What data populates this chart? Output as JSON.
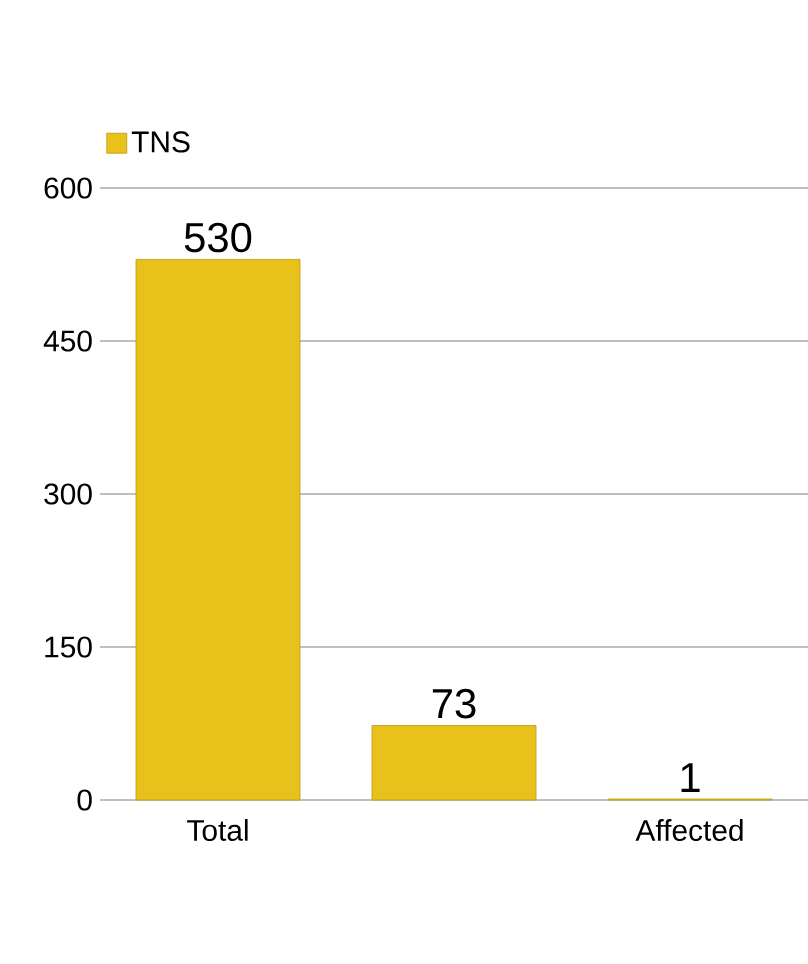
{
  "chart_data": {
    "type": "bar",
    "categories": [
      "Total",
      null,
      "Affected"
    ],
    "series": [
      {
        "name": "TNS",
        "color": "#e8c11a",
        "values": [
          530,
          73,
          1
        ]
      }
    ],
    "ylim": [
      0,
      600
    ],
    "yticks": [
      0,
      150,
      300,
      450,
      600
    ],
    "grid": "y",
    "legend": "top left",
    "data_labels": true
  }
}
